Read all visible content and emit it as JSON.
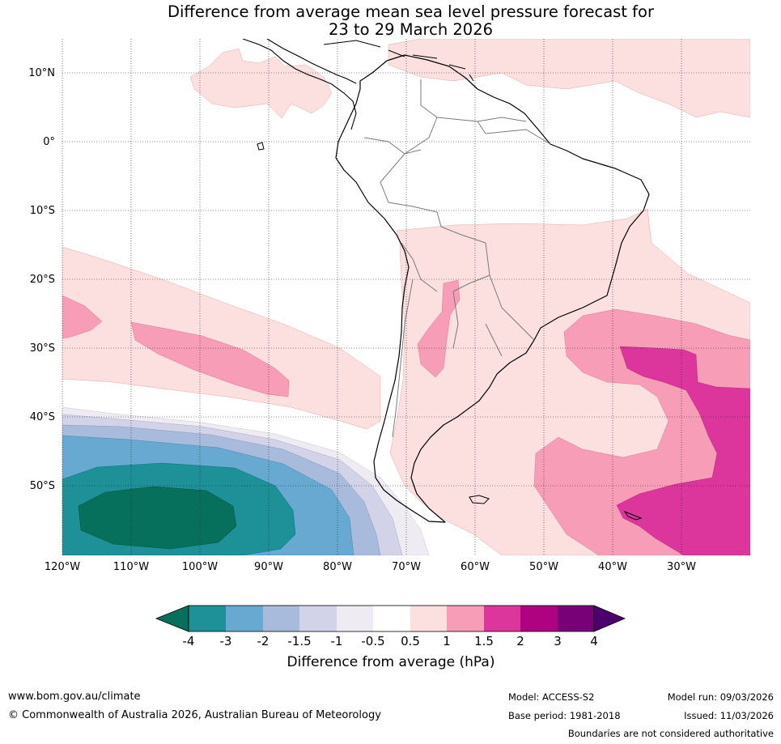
{
  "title": {
    "line1": "Difference from average mean sea level pressure forecast for",
    "line2": "23 to 29 March 2026"
  },
  "map": {
    "projection": "equirectangular",
    "lon_range": [
      -120,
      -20
    ],
    "lat_range": [
      -60,
      15
    ],
    "lat_labels": [
      "10°N",
      "0°",
      "10°S",
      "20°S",
      "30°S",
      "40°S",
      "50°S"
    ],
    "lon_labels": [
      "120°W",
      "110°W",
      "100°W",
      "90°W",
      "80°W",
      "70°W",
      "60°W",
      "50°W",
      "40°W",
      "30°W"
    ],
    "gridlines": "dotted"
  },
  "colorbar": {
    "title": "Difference from average (hPa)",
    "tick_labels": [
      "-4",
      "-3",
      "-2",
      "-1.5",
      "-1",
      "-0.5",
      "0.5",
      "1",
      "1.5",
      "2",
      "3",
      "4"
    ],
    "colors": [
      "#06705c",
      "#1e9198",
      "#67a9d0",
      "#a8bbdc",
      "#d2d3e8",
      "#eeebf2",
      "#ffffff",
      "#fcdfdf",
      "#f89db7",
      "#dc359b",
      "#ae0280",
      "#780178",
      "#4b006d"
    ]
  },
  "footer": {
    "website": "www.bom.gov.au/climate",
    "copyright": "© Commonwealth of Australia 2026, Australian Bureau of Meteorology",
    "model": "Model: ACCESS-S2",
    "base_period": "Base period: 1981-2018",
    "model_run": "Model run: 09/03/2026",
    "issued": "Issued: 11/03/2026",
    "disclaimer": "Boundaries are not considered authoritative"
  }
}
